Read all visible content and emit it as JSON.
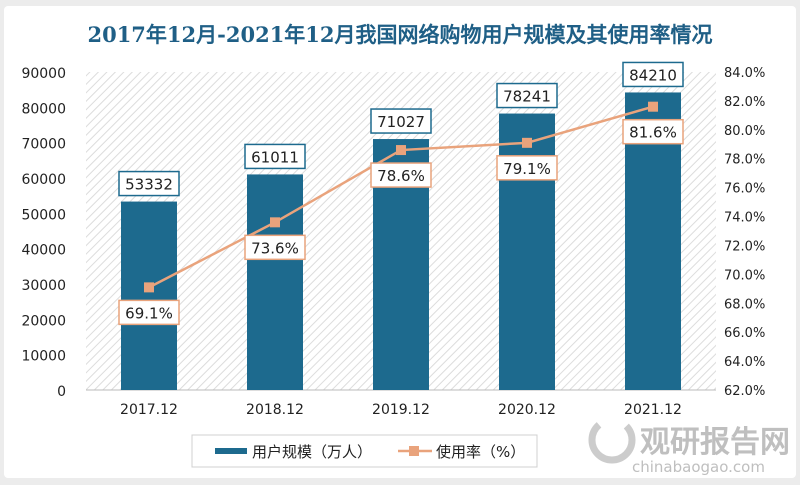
{
  "chart_data": {
    "type": "bar+line",
    "title": "2017年12月-2021年12月我国网络购物用户规模及其使用率情况",
    "categories": [
      "2017.12",
      "2018.12",
      "2019.12",
      "2020.12",
      "2021.12"
    ],
    "series": [
      {
        "name": "用户规模（万人）",
        "type": "bar",
        "axis": "left",
        "values": [
          53332,
          61011,
          71027,
          78241,
          84210
        ],
        "labels": [
          "53332",
          "61011",
          "71027",
          "78241",
          "84210"
        ],
        "color": "#1d6a8e"
      },
      {
        "name": "使用率（%）",
        "type": "line",
        "axis": "right",
        "values": [
          69.1,
          73.6,
          78.6,
          79.1,
          81.6
        ],
        "labels": [
          "69.1%",
          "73.6%",
          "78.6%",
          "79.1%",
          "81.6%"
        ],
        "color": "#e9a37c"
      }
    ],
    "left_axis": {
      "ylim": [
        0,
        90000
      ],
      "ticks": [
        "0",
        "10000",
        "20000",
        "30000",
        "40000",
        "50000",
        "60000",
        "70000",
        "80000",
        "90000"
      ]
    },
    "right_axis": {
      "ylim": [
        62,
        84
      ],
      "ticks": [
        "62.0%",
        "64.0%",
        "66.0%",
        "68.0%",
        "70.0%",
        "72.0%",
        "74.0%",
        "76.0%",
        "78.0%",
        "80.0%",
        "82.0%",
        "84.0%"
      ]
    },
    "legend": {
      "placement": "bottom",
      "items": [
        "用户规模（万人）",
        "使用率（%）"
      ]
    }
  },
  "watermark": {
    "name": "观研报告网",
    "url": "chinabaogao.com"
  }
}
